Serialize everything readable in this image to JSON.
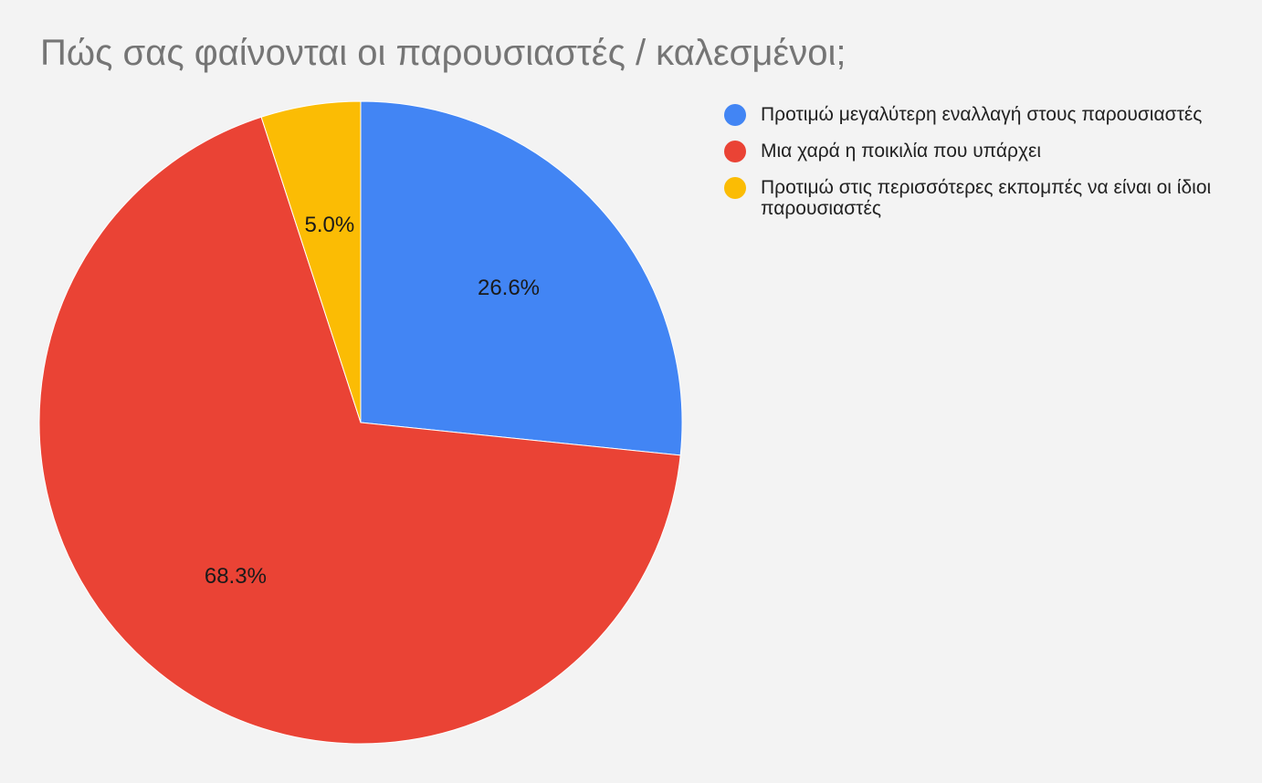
{
  "chart_data": {
    "type": "pie",
    "title": "Πώς σας φαίνονται οι παρουσιαστές / καλεσμένοι;",
    "start_angle": "top, clockwise",
    "legend_position": "right",
    "slices": [
      {
        "label": "Προτιμώ μεγαλύτερη εναλλαγή στους παρουσιαστές",
        "value": 26.6,
        "value_label": "26.6%",
        "color": "#4285f4"
      },
      {
        "label": "Μια χαρά η ποικιλία που υπάρχει",
        "value": 68.3,
        "value_label": "68.3%",
        "color": "#ea4335"
      },
      {
        "label": "Προτιμώ στις περισσότερες εκπομπές να είναι οι ίδιοι παρουσιαστές",
        "value": 5.0,
        "value_label": "5.0%",
        "color": "#fbbc04"
      }
    ]
  }
}
